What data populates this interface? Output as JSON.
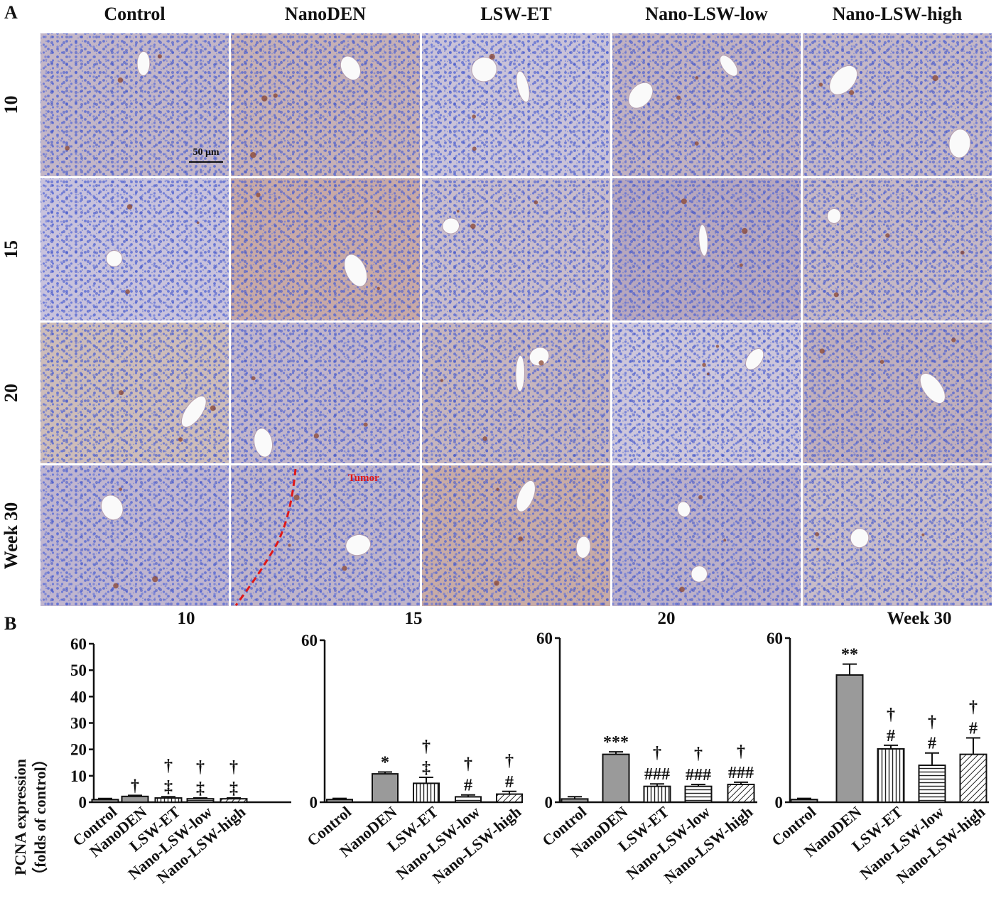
{
  "panel_a": {
    "label": "A",
    "columns": [
      "Control",
      "NanoDEN",
      "LSW-ET",
      "Nano-LSW-low",
      "Nano-LSW-high"
    ],
    "rows": [
      "10",
      "15",
      "20",
      "Week 30"
    ],
    "scale_bar": "50 μm",
    "tumor_label": "Tumor",
    "colors": {
      "hematoxylin": "#4a63d6",
      "background": "#c4b6c6",
      "brown": "#8a4630",
      "tumor_line": "#e01818"
    }
  },
  "panel_b": {
    "label": "B",
    "ylabel_line1": "PCNA expression",
    "ylabel_line2": "（folds of control）"
  },
  "chart_data": [
    {
      "type": "bar",
      "title": "10",
      "categories": [
        "Control",
        "NanoDEN",
        "LSW-ET",
        "Nano-LSW-low",
        "Nano-LSW-high"
      ],
      "values": [
        1,
        2.2,
        1.6,
        1.3,
        1.3
      ],
      "errors": [
        0.4,
        0.4,
        0.5,
        0.3,
        0.3
      ],
      "annotations": [
        [
          ""
        ],
        [
          "†"
        ],
        [
          "†",
          "‡"
        ],
        [
          "†",
          "‡"
        ],
        [
          "†",
          "‡"
        ]
      ],
      "ylim": [
        0,
        60
      ],
      "yticks": [
        "0",
        "10",
        "20",
        "30",
        "40",
        "50",
        "60"
      ]
    },
    {
      "type": "bar",
      "title": "15",
      "categories": [
        "Control",
        "NanoDEN",
        "LSW-ET",
        "Nano-LSW-low",
        "Nano-LSW-high"
      ],
      "values": [
        1,
        10.5,
        7,
        2,
        3
      ],
      "errors": [
        0.4,
        0.7,
        2.2,
        0.7,
        1.0
      ],
      "annotations": [
        [
          ""
        ],
        [
          "*"
        ],
        [
          "†",
          "‡"
        ],
        [
          "†",
          "#"
        ],
        [
          "†",
          "#"
        ]
      ],
      "ylim": [
        0,
        60
      ],
      "yticks": [
        "0",
        "60"
      ]
    },
    {
      "type": "bar",
      "title": "20",
      "categories": [
        "Control",
        "NanoDEN",
        "LSW-ET",
        "Nano-LSW-low",
        "Nano-LSW-high"
      ],
      "values": [
        1.2,
        17.5,
        5.8,
        5.8,
        6.5
      ],
      "errors": [
        0.8,
        0.9,
        0.9,
        0.7,
        0.8
      ],
      "annotations": [
        [
          ""
        ],
        [
          "***"
        ],
        [
          "†",
          "###"
        ],
        [
          "†",
          "###"
        ],
        [
          "†",
          "###"
        ]
      ],
      "ylim": [
        0,
        60
      ],
      "yticks": [
        "0",
        "60"
      ]
    },
    {
      "type": "bar",
      "title": "Week 30",
      "categories": [
        "Control",
        "NanoDEN",
        "LSW-ET",
        "Nano-LSW-low",
        "Nano-LSW-high"
      ],
      "values": [
        1,
        46.5,
        19.5,
        13.5,
        17.5
      ],
      "errors": [
        0.4,
        4.0,
        1.3,
        4.5,
        6.0
      ],
      "annotations": [
        [
          ""
        ],
        [
          "**"
        ],
        [
          "†",
          "#"
        ],
        [
          "†",
          "#"
        ],
        [
          "†",
          "#"
        ]
      ],
      "ylim": [
        0,
        60
      ],
      "yticks": [
        "0",
        "60"
      ]
    }
  ]
}
